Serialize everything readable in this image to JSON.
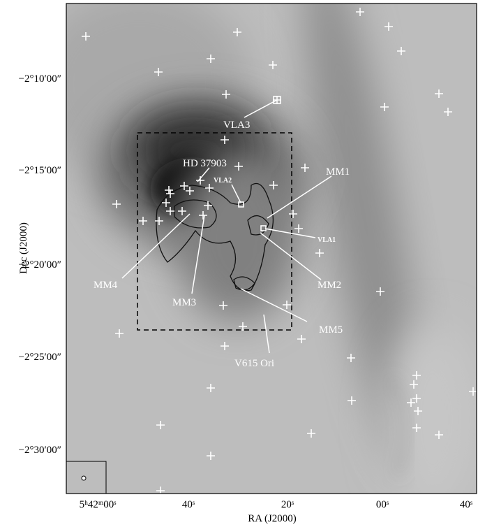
{
  "axes": {
    "y_title": "Dec (J2000)",
    "x_title": "RA (J2000)",
    "y_ticks": [
      "−2°10′00″",
      "−2°15′00″",
      "−2°20′00″",
      "−2°25′00″",
      "−2°30′00″"
    ],
    "x_ticks": [
      "5ʰ42ᵐ00ˢ",
      "40ˢ",
      "20ˢ",
      "00ˢ",
      "40ˢ"
    ]
  },
  "annotations": [
    "VLA3",
    "HD 37903",
    "VLA2",
    "MM1",
    "VLA1",
    "MM4",
    "MM2",
    "MM3",
    "MM5",
    "V615 Ori"
  ]
}
